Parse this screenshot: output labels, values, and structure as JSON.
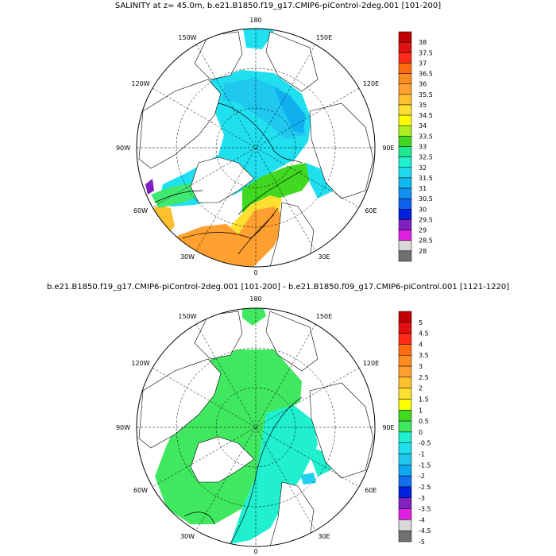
{
  "panels": [
    {
      "title": "SALINITY at z=  45.0m, b.e21.B1850.f19_g17.CMIP6-piControl-2deg.001 [101-200]",
      "lon_labels": {
        "top": "180",
        "top_right": "150E",
        "right_upper": "120E",
        "right": "90E",
        "right_lower": "60E",
        "bottom_right": "30E",
        "bottom": "0",
        "bottom_left": "30W",
        "left_lower": "60W",
        "left": "90W",
        "left_upper": "120W",
        "top_left": "150W"
      },
      "colorbar": {
        "labels": [
          "38",
          "37.5",
          "37",
          "36.5",
          "36",
          "35.5",
          "35",
          "34.5",
          "34",
          "33.5",
          "33",
          "32.5",
          "32",
          "31.5",
          "31",
          "30.5",
          "30",
          "29.5",
          "29",
          "28.5",
          "28"
        ],
        "colors": [
          "#c00000",
          "#e01010",
          "#ff2a1a",
          "#ff6a10",
          "#ff8c20",
          "#ffa030",
          "#ffc030",
          "#ffe030",
          "#ffff00",
          "#b0f020",
          "#40d820",
          "#20e890",
          "#20f0d0",
          "#20d8f0",
          "#10b8f0",
          "#1090f0",
          "#1060f0",
          "#0020e0",
          "#8020c0",
          "#e020e0",
          "#d8d8d8",
          "#707070"
        ]
      }
    },
    {
      "title": "b.e21.B1850.f19_g17.CMIP6-piControl-2deg.001 [101-200] - b.e21.B1850.f09_g17.CMIP6-piControl.001 [1121-1220]",
      "lon_labels": {
        "top": "180",
        "top_right": "150E",
        "right_upper": "120E",
        "right": "90E",
        "right_lower": "60E",
        "bottom_right": "30E",
        "bottom": "0",
        "bottom_left": "30W",
        "left_lower": "60W",
        "left": "90W",
        "left_upper": "120W",
        "top_left": "150W"
      },
      "colorbar": {
        "labels": [
          "5",
          "4.5",
          "4",
          "3.5",
          "3",
          "2.5",
          "2",
          "1.5",
          "1",
          "0.5",
          "0",
          "-0.5",
          "-1",
          "-1.5",
          "-2",
          "-2.5",
          "-3",
          "-3.5",
          "-4",
          "-4.5",
          "-5"
        ],
        "colors": [
          "#c00000",
          "#e01010",
          "#ff2a1a",
          "#ff6a10",
          "#ff8c20",
          "#ffa030",
          "#ffc030",
          "#ffe030",
          "#ffff00",
          "#40d820",
          "#40e860",
          "#20f0d0",
          "#20e0f0",
          "#20c8f0",
          "#10a8f0",
          "#1070f0",
          "#0020e0",
          "#8020c0",
          "#e020e0",
          "#d8d8d8",
          "#707070"
        ]
      }
    }
  ]
}
